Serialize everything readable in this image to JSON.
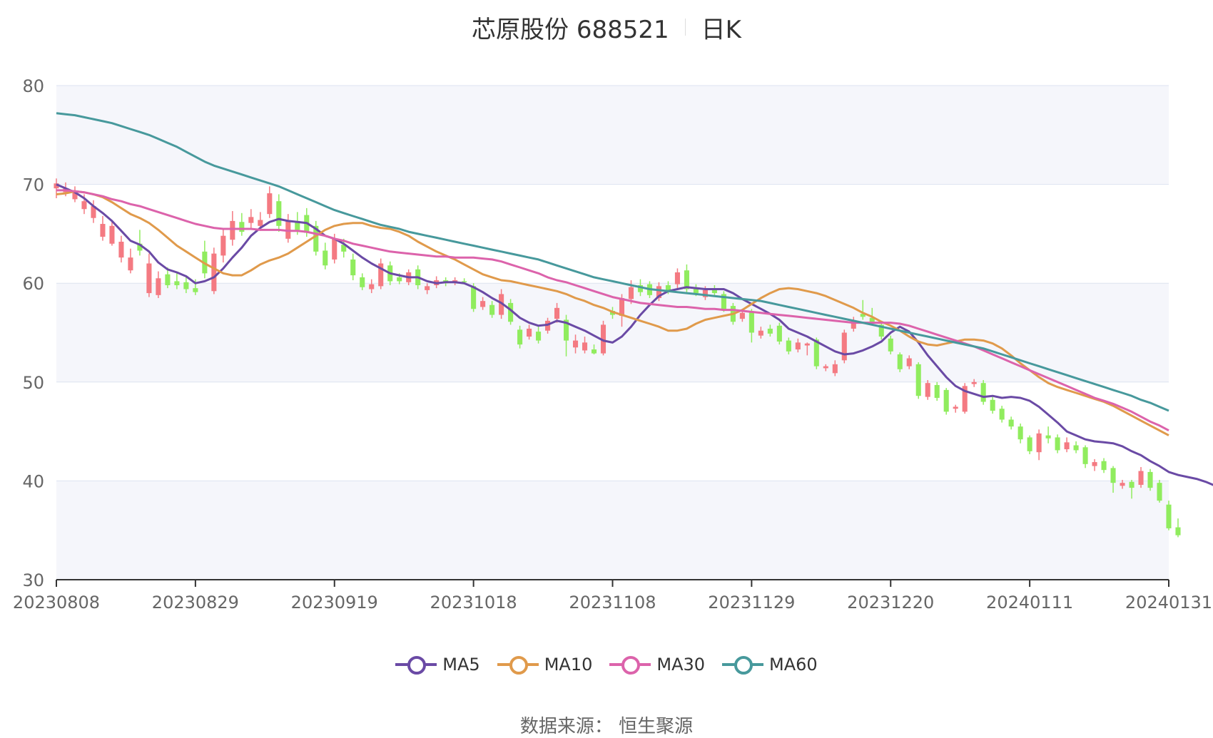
{
  "title": {
    "main": "芯原股份 688521",
    "sub": "日K"
  },
  "source": "数据来源： 恒生聚源",
  "colors": {
    "up": "#f47a82",
    "down": "#90ec5e",
    "grid": "#dde3f0",
    "band": "#f5f6fb",
    "axis": "#666666"
  },
  "legend": [
    {
      "label": "MA5",
      "color": "#6a4aa5",
      "ring": "#3b1e8c"
    },
    {
      "label": "MA10",
      "color": "#e09a4b",
      "ring": "#d9731a"
    },
    {
      "label": "MA30",
      "color": "#dc63ab",
      "ring": "#c82a8e"
    },
    {
      "label": "MA60",
      "color": "#47999c",
      "ring": "#1e6d70"
    }
  ],
  "chart_data": {
    "type": "candlestick",
    "ylim": [
      30,
      80
    ],
    "yticks": [
      30,
      40,
      50,
      60,
      70,
      80
    ],
    "xticks": [
      "20230808",
      "20230829",
      "20230919",
      "20231018",
      "20231108",
      "20231129",
      "20231220",
      "20240111",
      "20240131"
    ],
    "xtick_index": [
      0,
      15,
      30,
      45,
      60,
      75,
      90,
      105,
      120
    ],
    "n_days": 121,
    "candles": [
      [
        69.6,
        70.1,
        68.6,
        70.6
      ],
      [
        69.2,
        69.6,
        68.8,
        70.2
      ],
      [
        68.5,
        69.2,
        68.2,
        69.8
      ],
      [
        67.5,
        68.3,
        67.0,
        69.0
      ],
      [
        66.6,
        67.8,
        66.1,
        68.4
      ],
      [
        64.7,
        66.0,
        64.3,
        66.8
      ],
      [
        64.0,
        65.8,
        63.8,
        66.2
      ],
      [
        62.6,
        64.2,
        62.1,
        64.8
      ],
      [
        61.3,
        62.6,
        61.0,
        63.5
      ],
      [
        64.0,
        63.3,
        62.8,
        65.4
      ],
      [
        59.0,
        62.0,
        58.6,
        63.0
      ],
      [
        58.8,
        60.5,
        58.5,
        61.2
      ],
      [
        60.9,
        59.8,
        59.5,
        61.6
      ],
      [
        60.2,
        59.8,
        59.4,
        61.0
      ],
      [
        60.1,
        59.4,
        59.0,
        60.6
      ],
      [
        59.5,
        59.1,
        58.8,
        60.4
      ],
      [
        63.2,
        61.0,
        60.5,
        64.3
      ],
      [
        59.2,
        63.0,
        58.9,
        63.6
      ],
      [
        62.8,
        64.8,
        62.1,
        65.5
      ],
      [
        64.4,
        66.3,
        63.8,
        67.3
      ],
      [
        66.2,
        65.2,
        64.8,
        67.1
      ],
      [
        66.1,
        66.7,
        65.6,
        67.5
      ],
      [
        65.8,
        66.4,
        65.3,
        67.2
      ],
      [
        67.0,
        69.1,
        66.6,
        69.8
      ],
      [
        68.3,
        65.8,
        65.2,
        69.0
      ],
      [
        64.5,
        66.3,
        64.1,
        67.0
      ],
      [
        66.3,
        65.4,
        64.9,
        67.2
      ],
      [
        66.9,
        65.1,
        64.7,
        67.6
      ],
      [
        65.8,
        63.2,
        62.8,
        66.3
      ],
      [
        63.3,
        61.8,
        61.4,
        64.1
      ],
      [
        62.4,
        64.5,
        62.0,
        65.0
      ],
      [
        63.9,
        63.2,
        62.6,
        64.5
      ],
      [
        62.4,
        60.8,
        60.3,
        63.0
      ],
      [
        60.6,
        59.6,
        59.3,
        61.0
      ],
      [
        59.4,
        59.9,
        59.0,
        60.4
      ],
      [
        59.7,
        62.0,
        59.4,
        62.5
      ],
      [
        61.8,
        60.2,
        59.8,
        62.2
      ],
      [
        60.6,
        60.2,
        59.9,
        61.0
      ],
      [
        60.1,
        61.1,
        59.8,
        61.4
      ],
      [
        61.4,
        59.8,
        59.4,
        61.8
      ],
      [
        59.3,
        59.7,
        58.9,
        60.0
      ],
      [
        59.8,
        60.3,
        59.5,
        60.7
      ],
      [
        60.3,
        60.0,
        59.7,
        60.6
      ],
      [
        60.1,
        60.3,
        59.8,
        60.6
      ],
      [
        60.2,
        60.1,
        59.9,
        60.5
      ],
      [
        59.7,
        57.4,
        57.1,
        60.0
      ],
      [
        57.6,
        58.2,
        57.3,
        58.6
      ],
      [
        57.8,
        56.8,
        56.5,
        58.2
      ],
      [
        56.8,
        58.9,
        56.4,
        59.4
      ],
      [
        58.0,
        56.1,
        55.8,
        58.4
      ],
      [
        55.3,
        53.8,
        53.4,
        55.7
      ],
      [
        54.6,
        55.4,
        54.3,
        55.8
      ],
      [
        55.1,
        54.2,
        53.9,
        55.6
      ],
      [
        55.2,
        56.2,
        54.9,
        56.5
      ],
      [
        56.4,
        57.5,
        56.0,
        58.0
      ],
      [
        56.3,
        54.2,
        52.6,
        56.8
      ],
      [
        53.5,
        54.2,
        52.9,
        54.8
      ],
      [
        53.2,
        54.0,
        52.9,
        54.6
      ],
      [
        53.3,
        52.9,
        52.8,
        53.8
      ],
      [
        52.9,
        55.8,
        52.7,
        56.2
      ],
      [
        57.2,
        56.8,
        56.4,
        57.6
      ],
      [
        56.7,
        58.5,
        55.6,
        58.9
      ],
      [
        58.4,
        59.6,
        57.9,
        60.3
      ],
      [
        59.8,
        59.1,
        58.7,
        60.4
      ],
      [
        59.9,
        58.8,
        58.5,
        60.2
      ],
      [
        58.5,
        59.7,
        58.2,
        60.1
      ],
      [
        59.8,
        59.2,
        58.9,
        60.2
      ],
      [
        59.9,
        61.1,
        59.5,
        61.5
      ],
      [
        61.3,
        59.4,
        59.1,
        61.9
      ],
      [
        59.5,
        59.0,
        58.7,
        59.9
      ],
      [
        58.6,
        59.3,
        58.3,
        59.7
      ],
      [
        59.4,
        59.0,
        58.7,
        59.8
      ],
      [
        58.9,
        57.4,
        57.1,
        59.2
      ],
      [
        57.7,
        56.1,
        55.8,
        58.0
      ],
      [
        56.4,
        57.0,
        56.1,
        57.3
      ],
      [
        57.1,
        55.0,
        54.0,
        57.4
      ],
      [
        54.7,
        55.2,
        54.4,
        55.6
      ],
      [
        55.4,
        54.9,
        54.6,
        55.8
      ],
      [
        55.7,
        54.1,
        53.8,
        56.0
      ],
      [
        54.2,
        53.1,
        52.8,
        54.5
      ],
      [
        53.3,
        54.0,
        53.0,
        54.4
      ],
      [
        53.7,
        53.9,
        52.7,
        54.0
      ],
      [
        54.3,
        51.6,
        51.3,
        54.5
      ],
      [
        51.4,
        51.6,
        51.1,
        51.8
      ],
      [
        50.9,
        51.8,
        50.6,
        52.2
      ],
      [
        52.2,
        55.0,
        51.9,
        55.3
      ],
      [
        55.4,
        56.2,
        55.1,
        56.6
      ],
      [
        56.9,
        56.6,
        56.3,
        58.3
      ],
      [
        56.5,
        56.1,
        55.9,
        57.5
      ],
      [
        55.8,
        54.6,
        54.3,
        56.1
      ],
      [
        54.4,
        53.1,
        52.8,
        54.7
      ],
      [
        52.8,
        51.3,
        51.0,
        53.0
      ],
      [
        51.6,
        52.4,
        51.3,
        52.7
      ],
      [
        51.8,
        48.6,
        48.3,
        52.0
      ],
      [
        48.5,
        49.9,
        48.2,
        50.2
      ],
      [
        49.7,
        48.4,
        48.1,
        50.0
      ],
      [
        49.2,
        47.0,
        46.7,
        49.4
      ],
      [
        47.3,
        47.5,
        46.9,
        47.7
      ],
      [
        47.0,
        49.6,
        46.8,
        49.9
      ],
      [
        49.8,
        50.0,
        49.5,
        50.3
      ],
      [
        49.9,
        48.0,
        47.7,
        50.2
      ],
      [
        48.2,
        47.1,
        46.8,
        48.5
      ],
      [
        47.3,
        46.2,
        45.9,
        47.6
      ],
      [
        46.2,
        45.5,
        45.2,
        46.5
      ],
      [
        45.5,
        44.2,
        43.8,
        45.8
      ],
      [
        44.4,
        43.0,
        42.7,
        44.6
      ],
      [
        42.9,
        44.8,
        42.1,
        45.2
      ],
      [
        44.6,
        44.3,
        43.8,
        45.5
      ],
      [
        44.4,
        43.1,
        42.8,
        44.7
      ],
      [
        43.2,
        43.9,
        42.9,
        44.4
      ],
      [
        43.6,
        43.1,
        42.8,
        44.0
      ],
      [
        43.4,
        41.7,
        41.3,
        43.6
      ],
      [
        41.5,
        41.9,
        41.0,
        42.2
      ],
      [
        42.0,
        41.1,
        40.8,
        42.3
      ],
      [
        41.3,
        39.8,
        38.8,
        41.5
      ],
      [
        39.5,
        39.8,
        39.2,
        40.1
      ],
      [
        39.9,
        39.3,
        38.2,
        40.1
      ],
      [
        39.6,
        41.0,
        39.3,
        41.4
      ],
      [
        40.9,
        39.3,
        39.0,
        41.2
      ],
      [
        39.8,
        38.0,
        37.8,
        40.1
      ],
      [
        37.6,
        35.2,
        35.0,
        38.0
      ],
      [
        35.3,
        34.5,
        34.3,
        36.2
      ]
    ],
    "series": [
      {
        "name": "MA5",
        "values": [
          70.0,
          69.6,
          69.2,
          68.6,
          67.8,
          67.1,
          66.3,
          65.3,
          64.3,
          63.9,
          63.2,
          62.1,
          61.4,
          61.1,
          60.7,
          60.0,
          60.2,
          60.6,
          61.5,
          62.6,
          63.6,
          64.8,
          65.6,
          66.2,
          66.5,
          66.3,
          66.2,
          66.1,
          65.5,
          64.8,
          64.5,
          64.0,
          63.3,
          62.6,
          62.0,
          61.5,
          61.0,
          60.8,
          60.6,
          60.6,
          60.2,
          60.0,
          60.1,
          60.1,
          60.0,
          59.6,
          59.1,
          58.5,
          58.0,
          57.3,
          56.5,
          56.0,
          55.7,
          55.8,
          56.2,
          56.0,
          55.6,
          55.2,
          54.7,
          54.2,
          54.0,
          54.6,
          55.6,
          56.8,
          57.8,
          58.7,
          59.2,
          59.4,
          59.6,
          59.5,
          59.4,
          59.4,
          59.4,
          59.0,
          58.4,
          57.9,
          57.4,
          56.9,
          56.3,
          55.4,
          55.0,
          54.6,
          54.1,
          53.6,
          53.1,
          52.8,
          52.9,
          53.2,
          53.6,
          54.1,
          55.0,
          55.6,
          55.1,
          54.0,
          52.7,
          51.6,
          50.5,
          49.6,
          49.1,
          48.8,
          48.5,
          48.6,
          48.4,
          48.5,
          48.4,
          48.1,
          47.5,
          46.7,
          45.9,
          45.0,
          44.6,
          44.2,
          44.0,
          43.9,
          43.8,
          43.5,
          43.0,
          42.6,
          42.0,
          41.5,
          40.9,
          40.6,
          40.4,
          40.2,
          39.9,
          39.5,
          38.8
        ]
      },
      {
        "name": "MA10",
        "values": [
          69.0,
          69.1,
          69.3,
          69.2,
          69.0,
          68.7,
          68.2,
          67.6,
          67.0,
          66.6,
          66.1,
          65.4,
          64.6,
          63.8,
          63.2,
          62.6,
          62.0,
          61.5,
          61.0,
          60.8,
          60.8,
          61.3,
          61.9,
          62.3,
          62.6,
          63.0,
          63.6,
          64.2,
          64.8,
          65.4,
          65.8,
          66.0,
          66.1,
          66.1,
          65.8,
          65.6,
          65.5,
          65.2,
          64.8,
          64.2,
          63.7,
          63.2,
          62.8,
          62.4,
          61.9,
          61.4,
          60.9,
          60.6,
          60.3,
          60.2,
          60.0,
          59.8,
          59.6,
          59.4,
          59.2,
          58.9,
          58.5,
          58.2,
          57.8,
          57.5,
          57.1,
          56.8,
          56.5,
          56.2,
          55.9,
          55.6,
          55.2,
          55.2,
          55.4,
          55.9,
          56.3,
          56.5,
          56.7,
          56.9,
          57.3,
          57.9,
          58.5,
          59.0,
          59.4,
          59.5,
          59.4,
          59.2,
          59.0,
          58.7,
          58.3,
          57.9,
          57.5,
          57.0,
          56.6,
          56.1,
          55.7,
          55.2,
          54.6,
          54.1,
          53.8,
          53.7,
          53.9,
          54.1,
          54.3,
          54.3,
          54.2,
          53.9,
          53.4,
          52.7,
          51.9,
          51.2,
          50.5,
          49.9,
          49.5,
          49.2,
          48.9,
          48.6,
          48.3,
          48.0,
          47.6,
          47.1,
          46.6,
          46.1,
          45.6,
          45.1,
          44.6
        ]
      },
      {
        "name": "MA30",
        "values": [
          69.4,
          69.4,
          69.3,
          69.2,
          69.0,
          68.8,
          68.5,
          68.3,
          68.0,
          67.8,
          67.5,
          67.2,
          66.9,
          66.6,
          66.3,
          66.0,
          65.8,
          65.6,
          65.5,
          65.5,
          65.5,
          65.5,
          65.4,
          65.4,
          65.4,
          65.3,
          65.3,
          65.2,
          65.0,
          64.8,
          64.5,
          64.3,
          64.0,
          63.8,
          63.6,
          63.4,
          63.2,
          63.1,
          63.0,
          62.9,
          62.8,
          62.7,
          62.7,
          62.6,
          62.6,
          62.6,
          62.5,
          62.4,
          62.2,
          61.9,
          61.6,
          61.3,
          61.0,
          60.6,
          60.3,
          60.1,
          59.8,
          59.5,
          59.2,
          58.9,
          58.6,
          58.4,
          58.2,
          58.0,
          57.9,
          57.8,
          57.7,
          57.6,
          57.6,
          57.5,
          57.4,
          57.4,
          57.3,
          57.3,
          57.2,
          57.1,
          57.0,
          56.9,
          56.8,
          56.7,
          56.6,
          56.5,
          56.4,
          56.3,
          56.2,
          56.1,
          56.0,
          56.0,
          56.0,
          56.0,
          56.0,
          55.9,
          55.7,
          55.4,
          55.1,
          54.8,
          54.5,
          54.2,
          53.9,
          53.6,
          53.2,
          52.8,
          52.4,
          52.0,
          51.6,
          51.2,
          50.8,
          50.4,
          50.0,
          49.6,
          49.2,
          48.8,
          48.4,
          48.1,
          47.8,
          47.4,
          47.0,
          46.5,
          46.0,
          45.6,
          45.1
        ]
      },
      {
        "name": "MA60",
        "values": [
          77.2,
          77.1,
          77.0,
          76.8,
          76.6,
          76.4,
          76.2,
          75.9,
          75.6,
          75.3,
          75.0,
          74.6,
          74.2,
          73.8,
          73.3,
          72.8,
          72.3,
          71.9,
          71.6,
          71.3,
          71.0,
          70.7,
          70.4,
          70.1,
          69.8,
          69.4,
          69.0,
          68.6,
          68.2,
          67.8,
          67.4,
          67.1,
          66.8,
          66.5,
          66.2,
          65.9,
          65.7,
          65.5,
          65.2,
          65.0,
          64.8,
          64.6,
          64.4,
          64.2,
          64.0,
          63.8,
          63.6,
          63.4,
          63.2,
          63.0,
          62.8,
          62.6,
          62.4,
          62.1,
          61.8,
          61.5,
          61.2,
          60.9,
          60.6,
          60.4,
          60.2,
          60.0,
          59.8,
          59.6,
          59.4,
          59.3,
          59.2,
          59.1,
          59.0,
          58.9,
          58.8,
          58.7,
          58.6,
          58.5,
          58.4,
          58.3,
          58.2,
          58.0,
          57.8,
          57.6,
          57.4,
          57.2,
          57.0,
          56.8,
          56.6,
          56.4,
          56.2,
          56.0,
          55.8,
          55.6,
          55.4,
          55.2,
          55.0,
          54.8,
          54.6,
          54.4,
          54.2,
          54.0,
          53.8,
          53.6,
          53.4,
          53.1,
          52.8,
          52.5,
          52.2,
          51.9,
          51.6,
          51.3,
          51.0,
          50.7,
          50.4,
          50.1,
          49.8,
          49.5,
          49.2,
          48.9,
          48.6,
          48.2,
          47.9,
          47.5,
          47.1
        ]
      }
    ]
  }
}
